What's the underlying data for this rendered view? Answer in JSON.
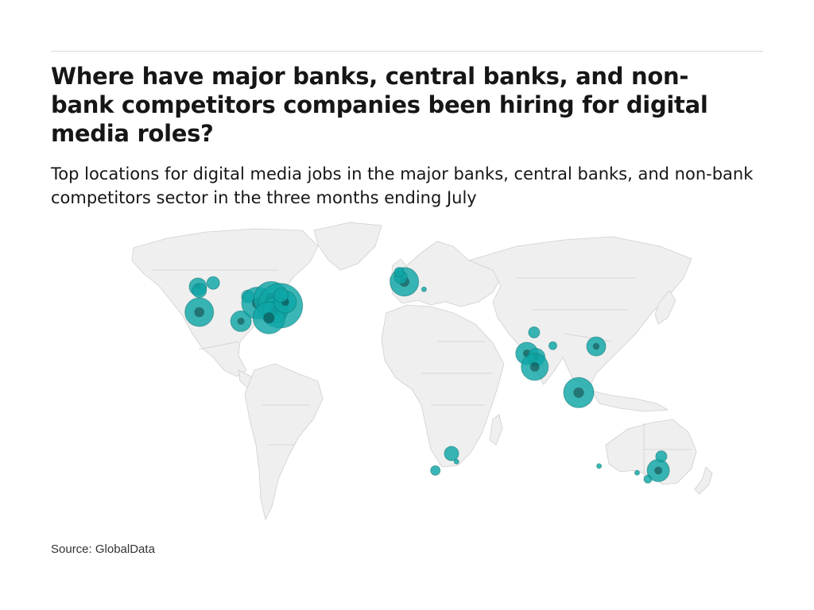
{
  "title": "Where have major banks, central banks, and non-bank competitors companies been hiring for digital media roles?",
  "subtitle": "Top locations for digital media jobs in the major banks, central banks, and non-bank competitors sector in the three months ending July",
  "source": "Source: GlobalData",
  "colors": {
    "bubble": "#0fa6a6",
    "overlap": "#0b2b2b",
    "land": "#efefef",
    "border": "#cfcfcf"
  },
  "chart_data": {
    "type": "bubble-map",
    "title": "Where have major banks, central banks, and non-bank competitors companies been hiring for digital media roles?",
    "subtitle": "Top locations for digital media jobs in the major banks, central banks, and non-bank competitors sector in the three months ending July",
    "points": [
      {
        "lat": 37.8,
        "lon": -122.3,
        "size": 18
      },
      {
        "lat": 49.3,
        "lon": -123.1,
        "size": 11
      },
      {
        "lat": 47.6,
        "lon": -122.3,
        "size": 9
      },
      {
        "lat": 51.0,
        "lon": -114.0,
        "size": 8
      },
      {
        "lat": 33.7,
        "lon": -97.5,
        "size": 13
      },
      {
        "lat": 44.9,
        "lon": -93.3,
        "size": 8
      },
      {
        "lat": 41.9,
        "lon": -87.6,
        "size": 20
      },
      {
        "lat": 43.7,
        "lon": -79.4,
        "size": 22
      },
      {
        "lat": 40.7,
        "lon": -74.0,
        "size": 28
      },
      {
        "lat": 38.9,
        "lon": -77.0,
        "size": 16
      },
      {
        "lat": 35.2,
        "lon": -80.8,
        "size": 20
      },
      {
        "lat": 42.4,
        "lon": -71.1,
        "size": 14
      },
      {
        "lat": 45.5,
        "lon": -73.6,
        "size": 9
      },
      {
        "lat": 51.5,
        "lon": -0.1,
        "size": 18
      },
      {
        "lat": 53.5,
        "lon": -2.2,
        "size": 8
      },
      {
        "lat": 55.9,
        "lon": -3.2,
        "size": 6
      },
      {
        "lat": 48.1,
        "lon": 11.6,
        "size": 3
      },
      {
        "lat": 28.6,
        "lon": 77.2,
        "size": 7
      },
      {
        "lat": 22.6,
        "lon": 88.4,
        "size": 5
      },
      {
        "lat": 19.1,
        "lon": 72.9,
        "size": 14
      },
      {
        "lat": 17.4,
        "lon": 78.5,
        "size": 11
      },
      {
        "lat": 13.0,
        "lon": 77.6,
        "size": 17
      },
      {
        "lat": 22.3,
        "lon": 114.2,
        "size": 12
      },
      {
        "lat": 1.35,
        "lon": 103.8,
        "size": 19
      },
      {
        "lat": -26.2,
        "lon": 28.0,
        "size": 9
      },
      {
        "lat": -29.9,
        "lon": 31.0,
        "size": 3
      },
      {
        "lat": -33.9,
        "lon": 18.4,
        "size": 6
      },
      {
        "lat": -31.9,
        "lon": 115.9,
        "size": 3
      },
      {
        "lat": -34.9,
        "lon": 138.6,
        "size": 3
      },
      {
        "lat": -37.8,
        "lon": 145.0,
        "size": 5
      },
      {
        "lat": -33.9,
        "lon": 151.2,
        "size": 14
      },
      {
        "lat": -27.5,
        "lon": 153.0,
        "size": 7
      }
    ]
  }
}
